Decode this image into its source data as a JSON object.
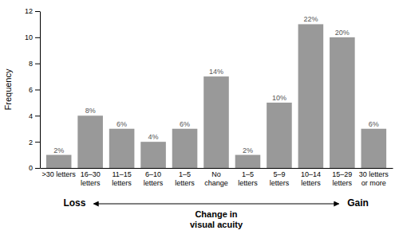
{
  "chart_data": {
    "type": "bar",
    "categories": [
      ">30 letters",
      "16–30\nletters",
      "11–15\nletters",
      "6–10\nletters",
      "1–5\nletters",
      "No\nchange",
      "1–5\nletters",
      "5–9\nletters",
      "10–14\nletters",
      "15–29\nletters",
      "30 letters\nor more"
    ],
    "values": [
      1,
      4,
      3,
      2,
      3,
      7,
      1,
      5,
      11,
      10,
      3
    ],
    "value_labels": [
      "2%",
      "8%",
      "6%",
      "4%",
      "6%",
      "14%",
      "2%",
      "10%",
      "22%",
      "20%",
      "6%"
    ],
    "data_labels": true,
    "color": "#999999",
    "ylabel": "Frequency",
    "xlabel": "Change in\nvisual acuity",
    "annotations": [
      "Loss",
      "Gain"
    ],
    "ylim": [
      0,
      12
    ],
    "yticks": [
      0,
      2,
      4,
      6,
      8,
      10,
      12
    ],
    "grid": false
  }
}
